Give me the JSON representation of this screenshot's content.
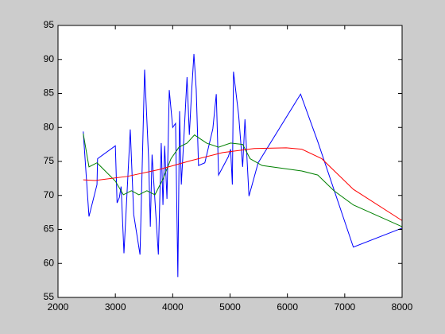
{
  "chart_data": {
    "type": "line",
    "xlim": [
      2000,
      8000
    ],
    "xticks": [
      2000,
      3000,
      4000,
      5000,
      6000,
      7000,
      8000
    ],
    "ylim": [
      55,
      95
    ],
    "yticks": [
      55,
      60,
      65,
      70,
      75,
      80,
      85,
      90,
      95
    ],
    "grid": false,
    "series": [
      {
        "color": "#0000ff",
        "x": [
          2440,
          2540,
          2680,
          2690,
          3000,
          3030,
          3070,
          3100,
          3150,
          3260,
          3320,
          3430,
          3510,
          3580,
          3610,
          3640,
          3750,
          3800,
          3830,
          3860,
          3900,
          3940,
          4000,
          4050,
          4090,
          4120,
          4150,
          4190,
          4250,
          4290,
          4330,
          4370,
          4410,
          4450,
          4560,
          4700,
          4760,
          4800,
          4970,
          5010,
          5040,
          5060,
          5150,
          5220,
          5260,
          5330,
          5490,
          6230,
          6530,
          7150,
          8000
        ],
        "values": [
          79.4,
          66.9,
          71.6,
          75.4,
          77.3,
          68.9,
          69.7,
          71.3,
          61.5,
          79.7,
          67.2,
          61.3,
          88.5,
          75.4,
          65.4,
          76.0,
          61.3,
          77.7,
          68.6,
          77.3,
          69.5,
          85.5,
          80.0,
          80.6,
          58.0,
          82.4,
          71.6,
          77.7,
          87.4,
          78.9,
          85.3,
          90.8,
          85.6,
          74.4,
          74.8,
          79.8,
          84.9,
          73.0,
          75.7,
          76.8,
          71.6,
          88.2,
          81.8,
          74.2,
          81.2,
          69.9,
          74.8,
          84.9,
          77.9,
          62.4,
          65.2
        ]
      },
      {
        "color": "#008000",
        "x": [
          2440,
          2540,
          2680,
          3000,
          3140,
          3280,
          3410,
          3550,
          3690,
          3830,
          3970,
          4110,
          4250,
          4380,
          4590,
          4800,
          5010,
          5220,
          5350,
          5560,
          6250,
          6530,
          6810,
          7150,
          8000
        ],
        "values": [
          79.1,
          74.2,
          74.8,
          72.1,
          70.1,
          70.7,
          70.1,
          70.7,
          70.1,
          72.4,
          75.4,
          77.1,
          77.7,
          78.9,
          77.7,
          77.1,
          77.7,
          77.5,
          75.4,
          74.4,
          73.6,
          73.0,
          70.7,
          68.6,
          65.4
        ]
      },
      {
        "color": "#ff0000",
        "x": [
          2440,
          2650,
          3210,
          3760,
          4310,
          4870,
          5420,
          5980,
          6250,
          6600,
          7150,
          8000
        ],
        "values": [
          72.3,
          72.2,
          72.8,
          73.8,
          75.1,
          76.3,
          76.9,
          77.0,
          76.8,
          75.4,
          70.9,
          66.3
        ]
      }
    ]
  }
}
